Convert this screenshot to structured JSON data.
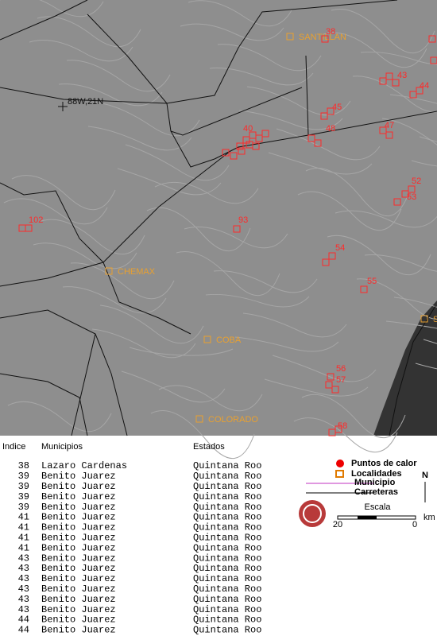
{
  "map": {
    "labels": [
      "38",
      "SANTILLAN",
      "88W,21N",
      "45",
      "48",
      "47",
      "40",
      "43",
      "44",
      "52",
      "53",
      "54",
      "55",
      "56",
      "57",
      "58",
      "93",
      "102",
      "CHEMAX",
      "COBA",
      "COLORADO",
      "S"
    ]
  },
  "legend": {
    "hotspots": "Puntos de calor",
    "localities": "Localidades",
    "municipality": "Municipio",
    "roads": "Carreteras",
    "scale_title": "Escala",
    "scale_left": "20",
    "scale_right": "0",
    "scale_unit": "km",
    "north": "N"
  },
  "table": {
    "headers": [
      "Indice",
      "Municipios",
      "Estados"
    ],
    "rows": [
      [
        "38",
        "Lazaro Cardenas",
        "Quintana Roo"
      ],
      [
        "39",
        "Benito Juarez",
        "Quintana Roo"
      ],
      [
        "39",
        "Benito Juarez",
        "Quintana Roo"
      ],
      [
        "39",
        "Benito Juarez",
        "Quintana Roo"
      ],
      [
        "39",
        "Benito Juarez",
        "Quintana Roo"
      ],
      [
        "41",
        "Benito Juarez",
        "Quintana Roo"
      ],
      [
        "41",
        "Benito Juarez",
        "Quintana Roo"
      ],
      [
        "41",
        "Benito Juarez",
        "Quintana Roo"
      ],
      [
        "41",
        "Benito Juarez",
        "Quintana Roo"
      ],
      [
        "43",
        "Benito Juarez",
        "Quintana Roo"
      ],
      [
        "43",
        "Benito Juarez",
        "Quintana Roo"
      ],
      [
        "43",
        "Benito Juarez",
        "Quintana Roo"
      ],
      [
        "43",
        "Benito Juarez",
        "Quintana Roo"
      ],
      [
        "43",
        "Benito Juarez",
        "Quintana Roo"
      ],
      [
        "43",
        "Benito Juarez",
        "Quintana Roo"
      ],
      [
        "44",
        "Benito Juarez",
        "Quintana Roo"
      ],
      [
        "44",
        "Benito Juarez",
        "Quintana Roo"
      ]
    ]
  }
}
